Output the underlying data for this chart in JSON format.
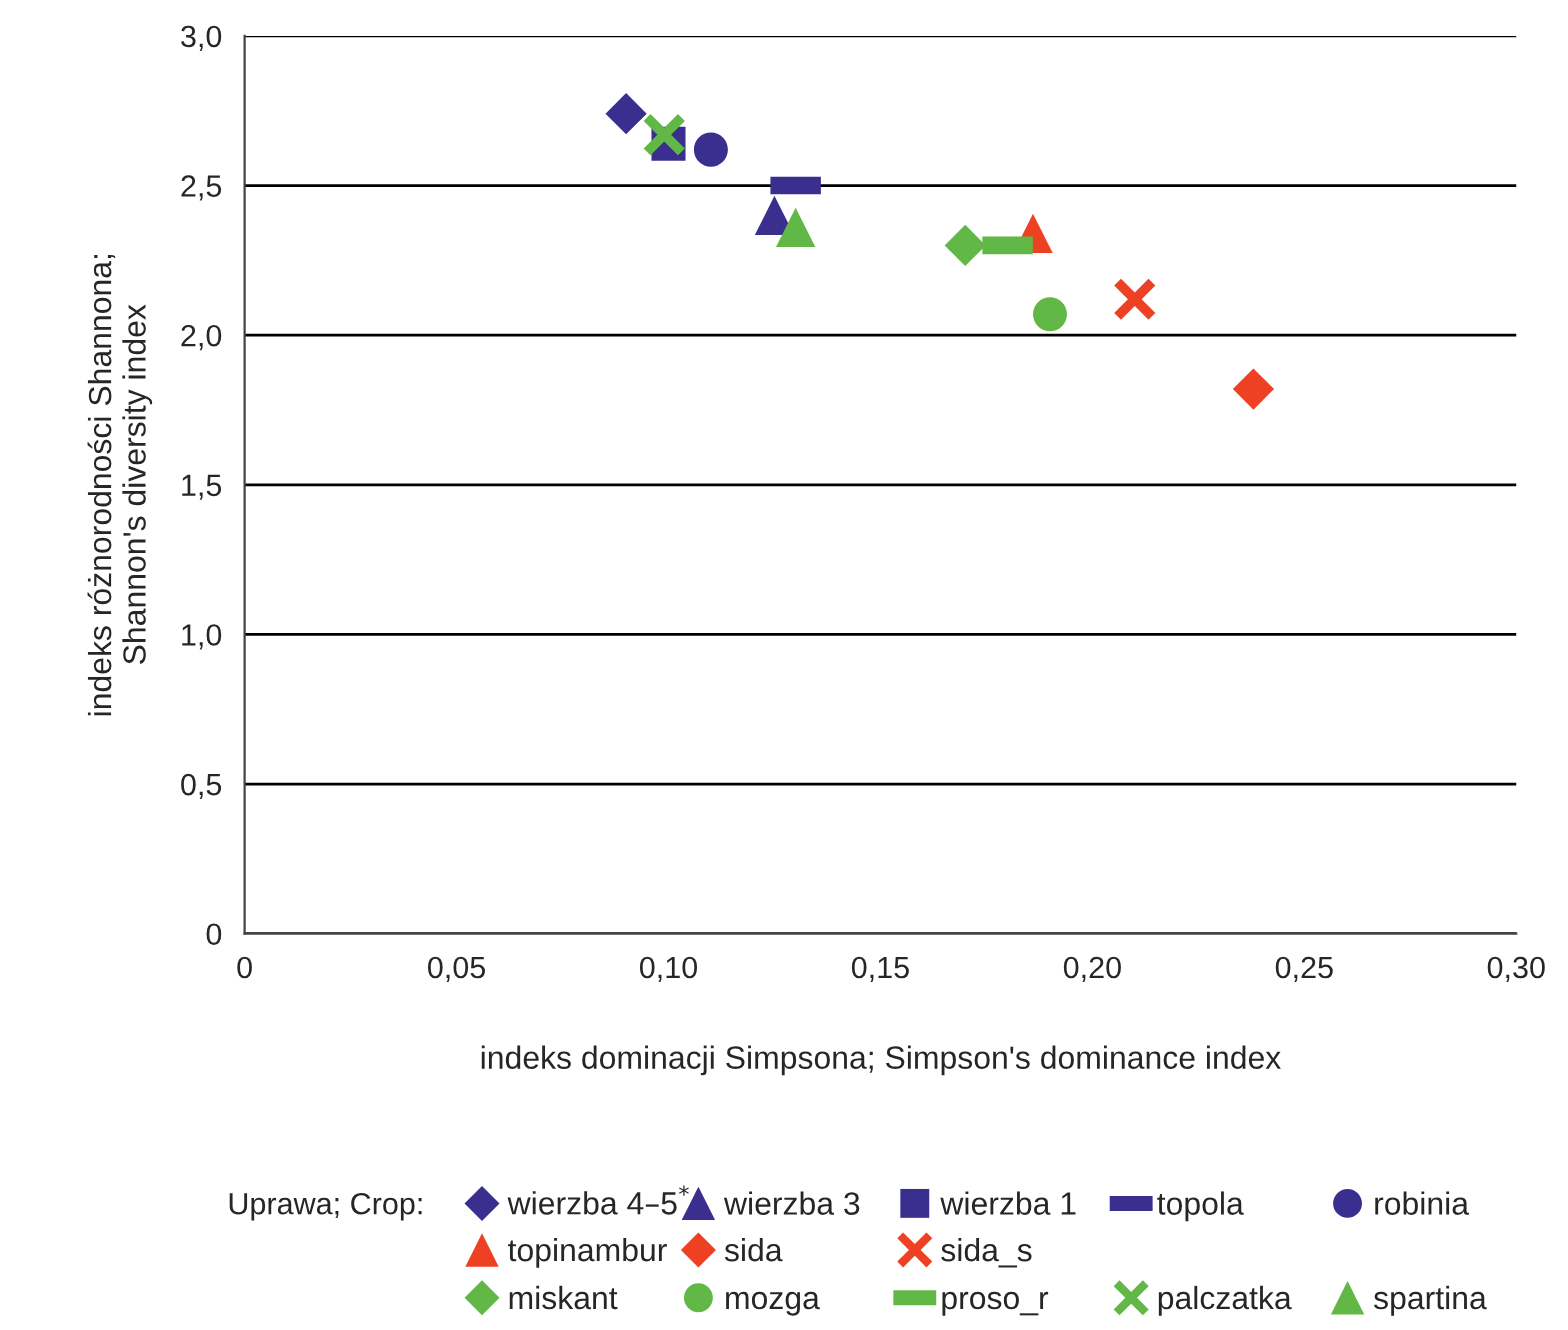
{
  "chart_data": {
    "type": "scatter",
    "xlabel": "indeks dominacji Simpsona; Simpson's dominance index",
    "ylabel": "indeks różnorodności Shannona;\nShannon's diversity index",
    "legend_title": "Uprawa; Crop:",
    "legend": "bottom",
    "grid": "y",
    "xlim": [
      0,
      0.3
    ],
    "ylim": [
      0,
      3.0
    ],
    "xticks": [
      0,
      {
        "value": 0.05,
        "label": "0,05"
      },
      {
        "value": 0.1,
        "label": "0,10"
      },
      {
        "value": 0.15,
        "label": "0,15"
      },
      {
        "value": 0.2,
        "label": "0,20"
      },
      {
        "value": 0.25,
        "label": "0,25"
      },
      {
        "value": 0.3,
        "label": "0,30"
      }
    ],
    "yticks": [
      0,
      {
        "value": 0.5,
        "label": "0,5"
      },
      {
        "value": 1.0,
        "label": "1,0"
      },
      {
        "value": 1.5,
        "label": "1,5"
      },
      {
        "value": 2.0,
        "label": "2,0"
      },
      {
        "value": 2.5,
        "label": "2,5"
      },
      {
        "value": 3.0,
        "label": "3,0"
      }
    ],
    "series": [
      {
        "name": "wierzba 4–5$^{*}$",
        "color": "#3a2f8f",
        "marker": "diamond",
        "x": [
          0.09
        ],
        "values": [
          2.74
        ]
      },
      {
        "name": "wierzba 3",
        "color": "#3a2f8f",
        "marker": "triangle",
        "x": [
          0.125
        ],
        "values": [
          2.4
        ]
      },
      {
        "name": "wierzba 1",
        "color": "#3a2f8f",
        "marker": "square",
        "x": [
          0.1
        ],
        "values": [
          2.64
        ]
      },
      {
        "name": "topola",
        "color": "#3a2f8f",
        "x": [
          0.13
        ],
        "values": [
          2.5
        ]
      },
      {
        "name": "robinia",
        "color": "#3a2f8f",
        "marker": "circle",
        "x": [
          0.11
        ],
        "values": [
          2.62
        ]
      },
      {
        "name": "topinambur",
        "color": "#ee4023",
        "marker": "triangle",
        "x": [
          0.186
        ],
        "values": [
          2.34
        ]
      },
      {
        "name": "sida",
        "color": "#ee4023",
        "marker": "diamond",
        "x": [
          0.238
        ],
        "values": [
          1.82
        ]
      },
      {
        "name": "sida_s",
        "color": "#ee4023",
        "marker": "cross",
        "x": [
          0.21
        ],
        "values": [
          2.12
        ]
      },
      {
        "name": "miskant",
        "color": "#62b846",
        "marker": "diamond",
        "x": [
          0.17
        ],
        "values": [
          2.3
        ]
      },
      {
        "name": "mozga",
        "color": "#62b846",
        "marker": "circle",
        "x": [
          0.19
        ],
        "values": [
          2.07
        ]
      },
      {
        "name": "proso_r",
        "color": "#62b846",
        "x": [
          0.18
        ],
        "values": [
          2.3
        ]
      },
      {
        "name": "palczatka",
        "color": "#62b846",
        "marker": "cross",
        "x": [
          0.099
        ],
        "values": [
          2.67
        ]
      },
      {
        "name": "spartina",
        "color": "#62b846",
        "marker": "triangle",
        "x": [
          0.13
        ],
        "values": [
          2.36
        ]
      }
    ]
  }
}
